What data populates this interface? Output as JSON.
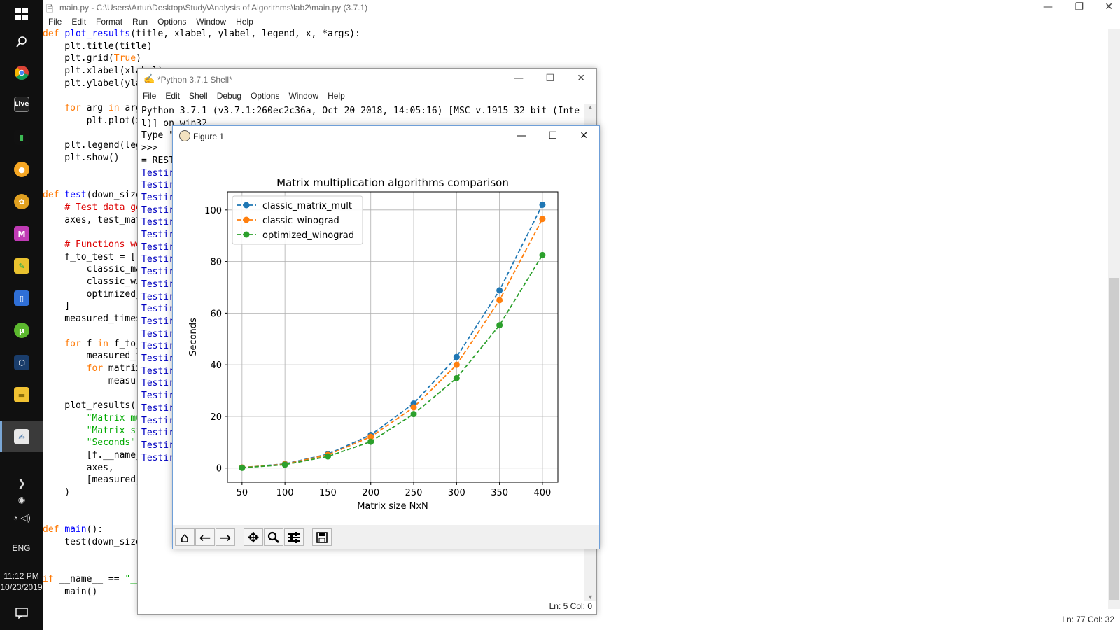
{
  "taskbar": {
    "time": "11:12 PM",
    "date": "10/23/2019",
    "lang": "ENG",
    "icons": [
      "windows-icon",
      "search-icon",
      "chrome-icon",
      "live-icon",
      "stats-icon",
      "gamepad-icon",
      "fruity-icon",
      "m-icon",
      "tools-icon",
      "book-icon",
      "utorrent-icon",
      "box-icon",
      "folder-icon",
      "python-idle-icon"
    ]
  },
  "editor": {
    "title": "main.py - C:\\Users\\Artur\\Desktop\\Study\\Analysis of Algorithms\\lab2\\main.py (3.7.1)",
    "menu": [
      "File",
      "Edit",
      "Format",
      "Run",
      "Options",
      "Window",
      "Help"
    ],
    "status": "Ln: 77   Col: 32"
  },
  "shell": {
    "title": "*Python 3.7.1 Shell*",
    "menu": [
      "File",
      "Edit",
      "Shell",
      "Debug",
      "Options",
      "Window",
      "Help"
    ],
    "status": "Ln: 5   Col: 0",
    "header_line1": "Python 3.7.1 (v3.7.1:260ec2c36a, Oct 20 2018, 14:05:16) [MSC v.1915 32 bit (Inte",
    "header_line2": "l)] on win32",
    "line_type": "Type \"",
    "line_prompt": ">>>",
    "line_restart": "= REST",
    "testing_label": "Testir"
  },
  "figure": {
    "title": "Figure 1"
  },
  "chart_data": {
    "type": "line",
    "title": "Matrix multiplication algorithms comparison",
    "xlabel": "Matrix size NxN",
    "ylabel": "Seconds",
    "x": [
      50,
      100,
      150,
      200,
      250,
      300,
      350,
      400
    ],
    "xticks": [
      50,
      100,
      150,
      200,
      250,
      300,
      350,
      400
    ],
    "yticks": [
      0,
      20,
      40,
      60,
      80,
      100
    ],
    "ylim": [
      -5.5,
      107
    ],
    "xlim": [
      33,
      418
    ],
    "grid": true,
    "legend_position": "top-left",
    "series": [
      {
        "name": "classic_matrix_mult",
        "color": "#1f77b4",
        "values": [
          0.2,
          1.6,
          5.4,
          12.8,
          25.0,
          43.0,
          68.8,
          102.0
        ]
      },
      {
        "name": "classic_winograd",
        "color": "#ff7f0e",
        "values": [
          0.2,
          1.5,
          5.1,
          12.1,
          23.5,
          40.0,
          65.0,
          96.5
        ]
      },
      {
        "name": "optimized_winograd",
        "color": "#2ca02c",
        "values": [
          0.1,
          1.3,
          4.5,
          10.2,
          20.9,
          34.8,
          55.3,
          82.5
        ]
      }
    ]
  }
}
